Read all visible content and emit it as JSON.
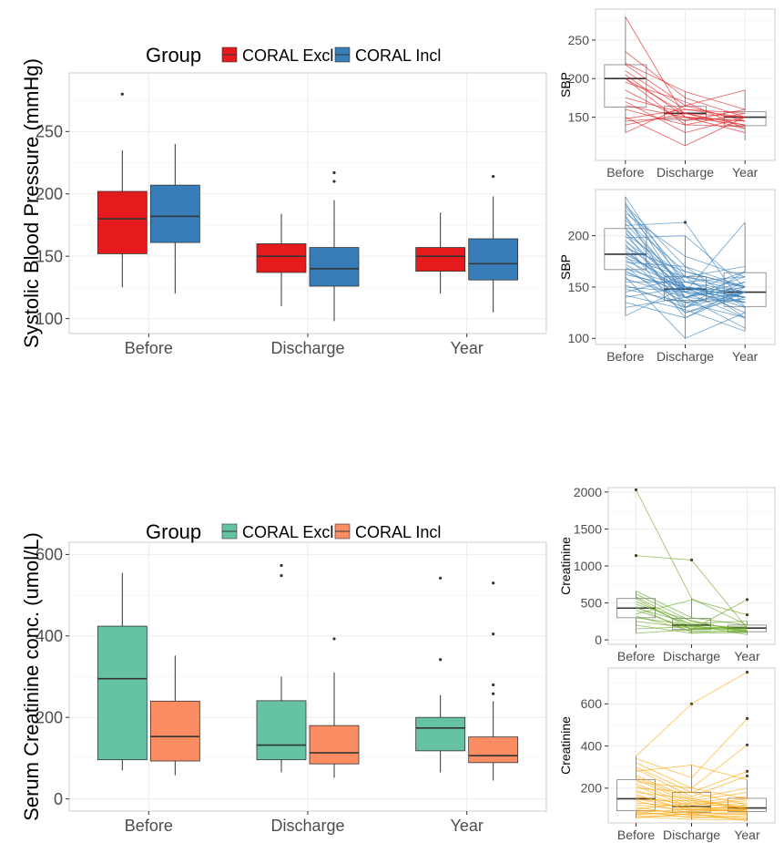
{
  "chart_data": [
    {
      "id": "sbp_box",
      "type": "box",
      "ylabel": "Systolic Blood Pressure (mmHg)",
      "categories": [
        "Before",
        "Discharge",
        "Year"
      ],
      "ylim": [
        88,
        297
      ],
      "yticks": [
        100,
        150,
        200,
        250
      ],
      "legend": {
        "title": "Group",
        "placement": "top"
      },
      "series": [
        {
          "name": "CORAL Excl",
          "color": "#E41A1C",
          "boxes": [
            {
              "min": 125,
              "q1": 152,
              "median": 180,
              "q3": 202,
              "max": 235,
              "outliers": [
                280
              ]
            },
            {
              "min": 110,
              "q1": 137,
              "median": 150,
              "q3": 160,
              "max": 184,
              "outliers": []
            },
            {
              "min": 120,
              "q1": 138,
              "median": 150,
              "q3": 157,
              "max": 185,
              "outliers": []
            }
          ]
        },
        {
          "name": "CORAL Incl",
          "color": "#377EB8",
          "boxes": [
            {
              "min": 120,
              "q1": 161,
              "median": 182,
              "q3": 207,
              "max": 240,
              "outliers": []
            },
            {
              "min": 98,
              "q1": 126,
              "median": 140,
              "q3": 157,
              "max": 195,
              "outliers": [
                210,
                217
              ]
            },
            {
              "min": 105,
              "q1": 131,
              "median": 144,
              "q3": 164,
              "max": 198,
              "outliers": [
                214
              ]
            }
          ]
        }
      ]
    },
    {
      "id": "creat_box",
      "type": "box",
      "ylabel": "Serum Creatinine conc. (umol/L)",
      "categories": [
        "Before",
        "Discharge",
        "Year"
      ],
      "ylim": [
        -30,
        630
      ],
      "yticks": [
        0,
        200,
        400,
        600
      ],
      "legend": {
        "title": "Group",
        "placement": "top"
      },
      "series": [
        {
          "name": "CORAL Excl",
          "color": "#66C2A5",
          "boxes": [
            {
              "min": 70,
              "q1": 96,
              "median": 295,
              "q3": 424,
              "max": 555,
              "outliers": []
            },
            {
              "min": 65,
              "q1": 96,
              "median": 132,
              "q3": 241,
              "max": 300,
              "outliers": [
                548,
                573
              ]
            },
            {
              "min": 65,
              "q1": 118,
              "median": 174,
              "q3": 200,
              "max": 255,
              "outliers": [
                342,
                542
              ]
            }
          ]
        },
        {
          "name": "CORAL Incl",
          "color": "#FC8D62",
          "boxes": [
            {
              "min": 58,
              "q1": 93,
              "median": 153,
              "q3": 240,
              "max": 352,
              "outliers": []
            },
            {
              "min": 52,
              "q1": 86,
              "median": 113,
              "q3": 180,
              "max": 310,
              "outliers": [
                393
              ]
            },
            {
              "min": 45,
              "q1": 89,
              "median": 106,
              "q3": 152,
              "max": 240,
              "outliers": [
                258,
                280,
                405,
                530
              ]
            }
          ]
        }
      ]
    },
    {
      "id": "sbp_excl_spaghetti",
      "type": "line",
      "ylabel": "SBP",
      "categories": [
        "Before",
        "Discharge",
        "Year"
      ],
      "ylim": [
        94,
        290
      ],
      "yticks": [
        150,
        200,
        250
      ],
      "color": "#E41A1C",
      "boxes": [
        {
          "min": 130,
          "q1": 163,
          "median": 200,
          "q3": 218,
          "max": 280,
          "outliers": []
        },
        {
          "min": 113,
          "q1": 147,
          "median": 155,
          "q3": 164,
          "max": 183,
          "outliers": []
        },
        {
          "min": 120,
          "q1": 139,
          "median": 150,
          "q3": 157,
          "max": 185,
          "outliers": []
        }
      ],
      "lines": [
        [
          280,
          150,
          140
        ],
        [
          235,
          175,
          150
        ],
        [
          220,
          183,
          160
        ],
        [
          218,
          165,
          185
        ],
        [
          210,
          160,
          150
        ],
        [
          205,
          150,
          145
        ],
        [
          200,
          140,
          155
        ],
        [
          200,
          155,
          150
        ],
        [
          195,
          170,
          135
        ],
        [
          185,
          145,
          160
        ],
        [
          175,
          155,
          140
        ],
        [
          170,
          130,
          150
        ],
        [
          165,
          150,
          145
        ],
        [
          160,
          140,
          138
        ],
        [
          150,
          113,
          150
        ],
        [
          148,
          160,
          155
        ],
        [
          145,
          150,
          130
        ],
        [
          140,
          155,
          135
        ],
        [
          130,
          165,
          145
        ]
      ]
    },
    {
      "id": "sbp_incl_spaghetti",
      "type": "line",
      "ylabel": "SBP",
      "categories": [
        "Before",
        "Discharge",
        "Year"
      ],
      "ylim": [
        94,
        245
      ],
      "yticks": [
        100,
        150,
        200
      ],
      "color": "#377EB8",
      "boxes": [
        {
          "min": 122,
          "q1": 167,
          "median": 182,
          "q3": 207,
          "max": 238,
          "outliers": []
        },
        {
          "min": 100,
          "q1": 137,
          "median": 148,
          "q3": 160,
          "max": 200,
          "outliers": [
            213
          ]
        },
        {
          "min": 107,
          "q1": 131,
          "median": 145,
          "q3": 164,
          "max": 213,
          "outliers": []
        }
      ],
      "lines": [
        [
          238,
          150,
          140
        ],
        [
          232,
          140,
          150
        ],
        [
          230,
          170,
          130
        ],
        [
          228,
          160,
          120
        ],
        [
          225,
          155,
          145
        ],
        [
          222,
          180,
          160
        ],
        [
          220,
          130,
          165
        ],
        [
          218,
          145,
          135
        ],
        [
          215,
          165,
          150
        ],
        [
          212,
          150,
          140
        ],
        [
          210,
          213,
          130
        ],
        [
          208,
          140,
          155
        ],
        [
          206,
          150,
          125
        ],
        [
          204,
          125,
          145
        ],
        [
          202,
          160,
          170
        ],
        [
          200,
          145,
          140
        ],
        [
          198,
          200,
          150
        ],
        [
          196,
          135,
          120
        ],
        [
          194,
          155,
          160
        ],
        [
          192,
          120,
          145
        ],
        [
          190,
          150,
          135
        ],
        [
          188,
          165,
          150
        ],
        [
          186,
          140,
          110
        ],
        [
          184,
          145,
          165
        ],
        [
          182,
          150,
          140
        ],
        [
          180,
          130,
          155
        ],
        [
          178,
          160,
          145
        ],
        [
          176,
          148,
          130
        ],
        [
          174,
          170,
          150
        ],
        [
          172,
          140,
          160
        ],
        [
          170,
          125,
          140
        ],
        [
          168,
          150,
          135
        ],
        [
          166,
          135,
          145
        ],
        [
          164,
          145,
          213
        ],
        [
          162,
          150,
          140
        ],
        [
          160,
          100,
          125
        ],
        [
          158,
          140,
          150
        ],
        [
          155,
          155,
          140
        ],
        [
          152,
          130,
          145
        ],
        [
          150,
          145,
          120
        ],
        [
          148,
          135,
          138
        ],
        [
          145,
          160,
          150
        ],
        [
          142,
          128,
          107
        ],
        [
          140,
          150,
          145
        ],
        [
          135,
          120,
          150
        ],
        [
          130,
          140,
          135
        ],
        [
          122,
          150,
          140
        ]
      ]
    },
    {
      "id": "creat_excl_spaghetti",
      "type": "line",
      "ylabel": "Creatinine",
      "categories": [
        "Before",
        "Discharge",
        "Year"
      ],
      "ylim": [
        -60,
        2060
      ],
      "yticks": [
        0,
        500,
        1000,
        1500,
        2000
      ],
      "color": "#66A61E",
      "boxes": [
        {
          "min": 90,
          "q1": 300,
          "median": 430,
          "q3": 560,
          "max": 660,
          "outliers": [
            1140,
            2030
          ]
        },
        {
          "min": 90,
          "q1": 140,
          "median": 200,
          "q3": 290,
          "max": 560,
          "outliers": [
            1080
          ]
        },
        {
          "min": 70,
          "q1": 110,
          "median": 160,
          "q3": 200,
          "max": 255,
          "outliers": [
            340,
            545
          ]
        }
      ],
      "lines": [
        [
          2030,
          560,
          200
        ],
        [
          1140,
          1080,
          160
        ],
        [
          660,
          300,
          200
        ],
        [
          620,
          250,
          120
        ],
        [
          580,
          200,
          170
        ],
        [
          560,
          140,
          545
        ],
        [
          520,
          180,
          150
        ],
        [
          480,
          260,
          100
        ],
        [
          450,
          100,
          130
        ],
        [
          430,
          220,
          255
        ],
        [
          400,
          150,
          180
        ],
        [
          350,
          540,
          340
        ],
        [
          320,
          120,
          110
        ],
        [
          300,
          200,
          70
        ],
        [
          250,
          160,
          140
        ],
        [
          200,
          90,
          100
        ],
        [
          150,
          180,
          120
        ],
        [
          90,
          140,
          160
        ]
      ]
    },
    {
      "id": "creat_incl_spaghetti",
      "type": "line",
      "ylabel": "Creatinine",
      "categories": [
        "Before",
        "Discharge",
        "Year"
      ],
      "ylim": [
        35,
        770
      ],
      "yticks": [
        200,
        400,
        600
      ],
      "color": "#FFA500",
      "boxes": [
        {
          "min": 58,
          "q1": 93,
          "median": 150,
          "q3": 240,
          "max": 352,
          "outliers": []
        },
        {
          "min": 52,
          "q1": 86,
          "median": 113,
          "q3": 180,
          "max": 310,
          "outliers": [
            600
          ]
        },
        {
          "min": 45,
          "q1": 89,
          "median": 106,
          "q3": 152,
          "max": 240,
          "outliers": [
            258,
            280,
            405,
            530,
            750
          ]
        }
      ],
      "lines": [
        [
          352,
          600,
          750
        ],
        [
          340,
          250,
          530
        ],
        [
          320,
          200,
          405
        ],
        [
          300,
          180,
          280
        ],
        [
          290,
          160,
          258
        ],
        [
          280,
          310,
          240
        ],
        [
          260,
          150,
          200
        ],
        [
          250,
          140,
          180
        ],
        [
          240,
          130,
          160
        ],
        [
          230,
          200,
          150
        ],
        [
          220,
          120,
          140
        ],
        [
          210,
          110,
          130
        ],
        [
          200,
          180,
          120
        ],
        [
          190,
          100,
          110
        ],
        [
          180,
          150,
          100
        ],
        [
          170,
          90,
          95
        ],
        [
          160,
          120,
          150
        ],
        [
          150,
          100,
          90
        ],
        [
          145,
          140,
          110
        ],
        [
          140,
          80,
          85
        ],
        [
          130,
          110,
          100
        ],
        [
          120,
          95,
          120
        ],
        [
          110,
          70,
          80
        ],
        [
          100,
          130,
          105
        ],
        [
          95,
          85,
          75
        ],
        [
          90,
          60,
          70
        ],
        [
          85,
          100,
          95
        ],
        [
          80,
          75,
          60
        ],
        [
          75,
          90,
          100
        ],
        [
          70,
          65,
          55
        ],
        [
          65,
          52,
          50
        ],
        [
          58,
          80,
          45
        ]
      ]
    }
  ]
}
